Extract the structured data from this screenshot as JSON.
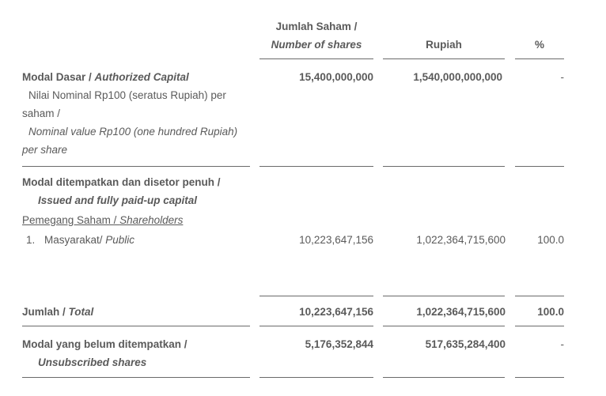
{
  "header": {
    "shares_line1": "Jumlah Saham /",
    "shares_line2": "Number of shares",
    "rupiah": "Rupiah",
    "percent": "%"
  },
  "authorized": {
    "label_id": "Modal Dasar / ",
    "label_en": "Authorized Capital",
    "nominal_line1": "Nilai Nominal Rp100 (seratus Rupiah) per",
    "nominal_line2": "saham /",
    "nominal_line3": "Nominal value Rp100 (one hundred Rupiah)",
    "nominal_line4": "per share",
    "shares": "15,400,000,000",
    "rupiah": "1,540,000,000,000",
    "percent": "-"
  },
  "issued": {
    "label_id": "Modal ditempatkan dan disetor penuh /",
    "label_en": "Issued and fully paid-up capital",
    "shareholders_id": "Pemegang Saham / ",
    "shareholders_en": "Shareholders",
    "row_number": "1.",
    "row_label_id": "Masyarakat/ ",
    "row_label_en": "Public",
    "row_shares": "10,223,647,156",
    "row_rupiah": "1,022,364,715,600",
    "row_percent": "100.0"
  },
  "total": {
    "label_id": "Jumlah / ",
    "label_en": "Total",
    "shares": "10,223,647,156",
    "rupiah": "1,022,364,715,600",
    "percent": "100.0"
  },
  "unsubscribed": {
    "label_id": "Modal yang belum ditempatkan /",
    "label_en": "Unsubscribed shares",
    "shares": "5,176,352,844",
    "rupiah": "517,635,284,400",
    "percent": "-"
  }
}
